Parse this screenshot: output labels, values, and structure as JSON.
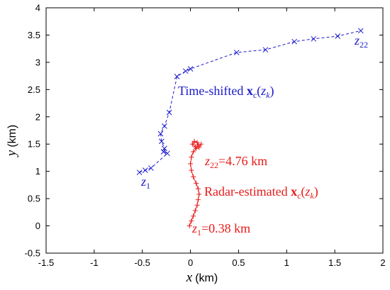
{
  "chart_data": {
    "type": "line",
    "xlabel": {
      "symbol": "x",
      "unit": "(km)"
    },
    "ylabel": {
      "symbol": "y",
      "unit": "(km)"
    },
    "xlim": [
      -1.5,
      2
    ],
    "ylim": [
      -0.5,
      4
    ],
    "xticks": [
      -1.5,
      -1,
      -0.5,
      0,
      0.5,
      1,
      1.5,
      2
    ],
    "yticks": [
      -0.5,
      0,
      0.5,
      1,
      1.5,
      2,
      2.5,
      3,
      3.5,
      4
    ],
    "xtick_labels": [
      "-1.5",
      "-1",
      "-0.5",
      "0",
      "0.5",
      "1",
      "1.5",
      "2"
    ],
    "ytick_labels": [
      "-0.5",
      "0",
      "0.5",
      "1",
      "1.5",
      "2",
      "2.5",
      "3",
      "3.5",
      "4"
    ],
    "grid": false,
    "series": [
      {
        "color": "#1a1acc",
        "line_style": "dashed",
        "marker": "x",
        "x": [
          -0.53,
          -0.47,
          -0.41,
          -0.24,
          -0.28,
          -0.27,
          -0.3,
          -0.31,
          -0.27,
          -0.22,
          -0.14,
          -0.05,
          0.0,
          0.48,
          0.78,
          1.08,
          1.28,
          1.53,
          1.77
        ],
        "y": [
          0.98,
          1.02,
          1.06,
          1.33,
          1.36,
          1.42,
          1.55,
          1.69,
          1.83,
          2.08,
          2.74,
          2.84,
          2.88,
          3.18,
          3.23,
          3.38,
          3.43,
          3.48,
          3.58
        ]
      },
      {
        "color": "#e81a1a",
        "line_style": "solid",
        "marker": "+",
        "x": [
          -0.01,
          0.01,
          0.03,
          0.05,
          0.07,
          0.08,
          0.09,
          0.08,
          0.06,
          0.03,
          0.01,
          0.0,
          0.01,
          0.03,
          0.06,
          0.08,
          0.07,
          0.04,
          0.02,
          0.05,
          0.09,
          0.11
        ],
        "y": [
          0.0,
          0.09,
          0.18,
          0.28,
          0.38,
          0.48,
          0.58,
          0.68,
          0.78,
          0.9,
          1.02,
          1.14,
          1.26,
          1.36,
          1.42,
          1.48,
          1.53,
          1.55,
          1.5,
          1.45,
          1.44,
          1.5
        ]
      }
    ],
    "annotations": {
      "blue_start": {
        "symbol": "z",
        "sub": "1"
      },
      "blue_end": {
        "symbol": "z",
        "sub": "22"
      },
      "blue_label": {
        "text": "Time-shifted ",
        "bold": "x",
        "bold_sub": "c",
        "arg_open": "(",
        "arg": "z",
        "arg_sub": "k",
        "arg_close": ")"
      },
      "red_start": {
        "symbol": "z",
        "sub": "1",
        "value": "=0.38 km"
      },
      "red_end": {
        "symbol": "z",
        "sub": "22",
        "value": "=4.76 km"
      },
      "red_label": {
        "text": "Radar-estimated ",
        "bold": "x",
        "bold_sub": "c",
        "arg_open": "(",
        "arg": "z",
        "arg_sub": "k",
        "arg_close": ")"
      }
    }
  }
}
